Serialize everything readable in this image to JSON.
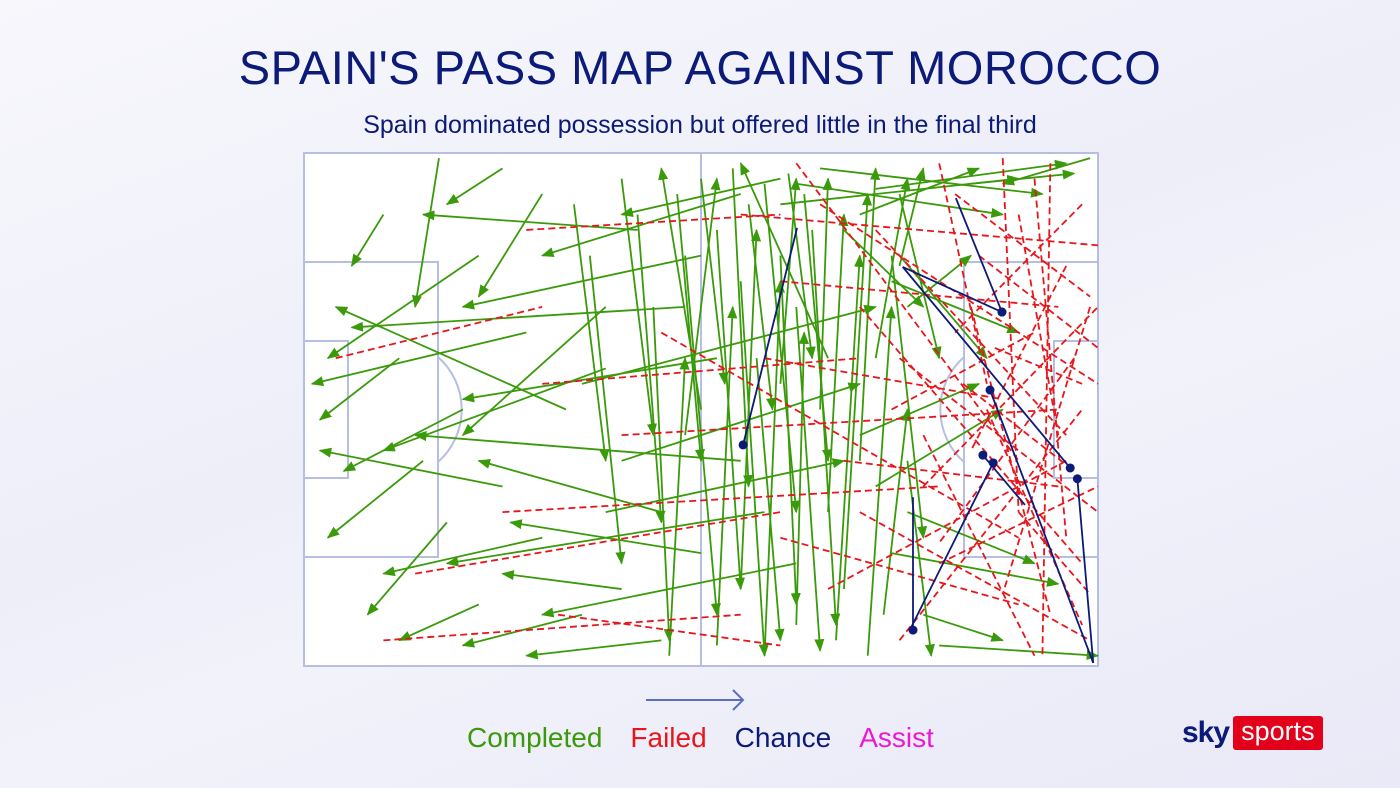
{
  "header": {
    "title": "SPAIN'S PASS MAP AGAINST MOROCCO",
    "subtitle": "Spain dominated possession but offered little in the final third"
  },
  "legend": [
    {
      "label": "Completed",
      "color": "#3a9a0a"
    },
    {
      "label": "Failed",
      "color": "#e8161b"
    },
    {
      "label": "Chance",
      "color": "#0c1a78"
    },
    {
      "label": "Assist",
      "color": "#e81ad8"
    }
  ],
  "logo": {
    "sky": "sky",
    "sports": "sports"
  },
  "chart_data": {
    "type": "pass-map",
    "title": "SPAIN'S PASS MAP AGAINST MOROCCO",
    "subtitle": "Spain dominated possession but offered little in the final third",
    "direction": "left-to-right",
    "units": "pitch percent (x: 0 own goal to 100 opponent goal, y: 0 top to 100 bottom)",
    "series": [
      {
        "name": "Completed",
        "color": "#3a9a0a",
        "passes": [
          [
            17,
            1,
            14,
            30
          ],
          [
            10,
            12,
            6,
            22
          ],
          [
            25,
            3,
            18,
            10
          ],
          [
            22,
            20,
            3,
            40
          ],
          [
            30,
            8,
            22,
            28
          ],
          [
            12,
            40,
            2,
            52
          ],
          [
            28,
            35,
            1,
            45
          ],
          [
            20,
            50,
            5,
            62
          ],
          [
            15,
            60,
            3,
            75
          ],
          [
            25,
            65,
            2,
            58
          ],
          [
            30,
            75,
            10,
            82
          ],
          [
            22,
            88,
            12,
            95
          ],
          [
            35,
            90,
            20,
            96
          ],
          [
            40,
            85,
            25,
            82
          ],
          [
            45,
            95,
            28,
            98
          ],
          [
            18,
            72,
            8,
            90
          ],
          [
            33,
            50,
            4,
            30
          ],
          [
            38,
            42,
            10,
            58
          ],
          [
            48,
            30,
            6,
            34
          ],
          [
            50,
            20,
            20,
            30
          ],
          [
            42,
            15,
            15,
            12
          ],
          [
            55,
            8,
            30,
            20
          ],
          [
            60,
            5,
            40,
            12
          ],
          [
            52,
            40,
            20,
            48
          ],
          [
            55,
            60,
            14,
            55
          ],
          [
            58,
            70,
            18,
            80
          ],
          [
            45,
            70,
            22,
            60
          ],
          [
            62,
            80,
            30,
            90
          ],
          [
            50,
            78,
            26,
            72
          ],
          [
            38,
            30,
            20,
            55
          ],
          [
            34,
            10,
            38,
            60
          ],
          [
            36,
            20,
            40,
            80
          ],
          [
            40,
            5,
            44,
            55
          ],
          [
            42,
            12,
            45,
            72
          ],
          [
            44,
            30,
            46,
            95
          ],
          [
            47,
            8,
            50,
            60
          ],
          [
            48,
            20,
            52,
            90
          ],
          [
            50,
            5,
            53,
            45
          ],
          [
            52,
            15,
            55,
            85
          ],
          [
            54,
            3,
            56,
            65
          ],
          [
            55,
            25,
            58,
            98
          ],
          [
            56,
            10,
            59,
            50
          ],
          [
            57,
            40,
            60,
            95
          ],
          [
            58,
            6,
            62,
            70
          ],
          [
            60,
            20,
            62,
            88
          ],
          [
            61,
            4,
            64,
            40
          ],
          [
            62,
            30,
            65,
            97
          ],
          [
            63,
            8,
            66,
            60
          ],
          [
            64,
            15,
            67,
            92
          ],
          [
            65,
            50,
            66,
            5
          ],
          [
            66,
            70,
            68,
            12
          ],
          [
            67,
            95,
            70,
            20
          ],
          [
            68,
            85,
            71,
            8
          ],
          [
            70,
            60,
            72,
            3
          ],
          [
            71,
            98,
            74,
            30
          ],
          [
            72,
            40,
            76,
            5
          ],
          [
            73,
            90,
            76,
            50
          ],
          [
            74,
            20,
            78,
            75
          ],
          [
            75,
            8,
            80,
            40
          ],
          [
            76,
            60,
            79,
            98
          ],
          [
            46,
            98,
            48,
            40
          ],
          [
            52,
            96,
            54,
            30
          ],
          [
            58,
            98,
            60,
            25
          ],
          [
            48,
            55,
            52,
            5
          ],
          [
            55,
            85,
            57,
            15
          ],
          [
            62,
            92,
            63,
            35
          ],
          [
            40,
            60,
            70,
            45
          ],
          [
            38,
            70,
            68,
            60
          ],
          [
            35,
            45,
            72,
            30
          ],
          [
            60,
            10,
            90,
            5
          ],
          [
            62,
            6,
            88,
            12
          ],
          [
            65,
            3,
            93,
            8
          ],
          [
            70,
            12,
            85,
            3
          ],
          [
            72,
            7,
            96,
            2
          ],
          [
            68,
            15,
            78,
            30
          ],
          [
            75,
            20,
            86,
            40
          ],
          [
            74,
            25,
            90,
            35
          ],
          [
            70,
            55,
            85,
            45
          ],
          [
            72,
            65,
            88,
            50
          ],
          [
            76,
            70,
            92,
            80
          ],
          [
            74,
            78,
            95,
            84
          ],
          [
            78,
            90,
            88,
            95
          ],
          [
            80,
            96,
            100,
            98
          ],
          [
            99,
            1,
            88,
            6
          ],
          [
            84,
            6,
            97,
            4
          ],
          [
            76,
            30,
            84,
            20
          ],
          [
            75,
            22,
            78,
            3
          ],
          [
            60,
            45,
            62,
            5
          ],
          [
            66,
            40,
            55,
            2
          ],
          [
            50,
            50,
            45,
            3
          ]
        ]
      },
      {
        "name": "Failed",
        "color": "#e8161b",
        "passes": [
          [
            4,
            40,
            30,
            30
          ],
          [
            10,
            95,
            55,
            90
          ],
          [
            14,
            82,
            60,
            70
          ],
          [
            25,
            70,
            80,
            65
          ],
          [
            30,
            45,
            70,
            40
          ],
          [
            40,
            55,
            95,
            50
          ],
          [
            45,
            35,
            90,
            75
          ],
          [
            55,
            12,
            100,
            18
          ],
          [
            60,
            25,
            95,
            30
          ],
          [
            62,
            2,
            90,
            60
          ],
          [
            65,
            10,
            100,
            45
          ],
          [
            70,
            30,
            98,
            80
          ],
          [
            72,
            15,
            96,
            55
          ],
          [
            75,
            40,
            100,
            70
          ],
          [
            78,
            55,
            92,
            98
          ],
          [
            80,
            2,
            86,
            45
          ],
          [
            82,
            8,
            99,
            28
          ],
          [
            84,
            30,
            94,
            90
          ],
          [
            85,
            20,
            100,
            38
          ],
          [
            86,
            50,
            98,
            92
          ],
          [
            88,
            1,
            90,
            70
          ],
          [
            90,
            12,
            95,
            55
          ],
          [
            92,
            5,
            96,
            75
          ],
          [
            94,
            2,
            93,
            98
          ],
          [
            96,
            22,
            84,
            58
          ],
          [
            97,
            40,
            80,
            76
          ],
          [
            98,
            10,
            82,
            35
          ],
          [
            99,
            30,
            88,
            86
          ],
          [
            70,
            70,
            99,
            95
          ],
          [
            66,
            85,
            96,
            60
          ],
          [
            75,
            95,
            98,
            50
          ],
          [
            80,
            80,
            100,
            65
          ],
          [
            68,
            60,
            95,
            65
          ],
          [
            60,
            75,
            90,
            88
          ],
          [
            58,
            40,
            88,
            48
          ],
          [
            74,
            50,
            92,
            35
          ],
          [
            78,
            65,
            100,
            30
          ],
          [
            83,
            45,
            97,
            62
          ],
          [
            87,
            38,
            98,
            45
          ],
          [
            90,
            70,
            99,
            86
          ],
          [
            28,
            15,
            60,
            12
          ],
          [
            32,
            90,
            60,
            96
          ]
        ]
      },
      {
        "name": "Chance",
        "color": "#0c1a78",
        "passes": [
          [
            82.1,
            8.8,
            87.9,
            31.0
          ],
          [
            75.4,
            22.2,
            87.9,
            31.0
          ],
          [
            75.4,
            22.2,
            96.5,
            61.4
          ],
          [
            99.4,
            99.4,
            86.4,
            46.2
          ],
          [
            76.3,
            93.0,
            86.8,
            60.4
          ],
          [
            90.8,
            68.6,
            85.5,
            58.9
          ],
          [
            76.7,
            67.1,
            76.7,
            93.0
          ],
          [
            99.4,
            99.4,
            97.4,
            63.5
          ],
          [
            62.1,
            14.6,
            55.3,
            56.9
          ]
        ]
      },
      {
        "name": "Assist",
        "color": "#e81ad8",
        "passes": []
      }
    ]
  }
}
